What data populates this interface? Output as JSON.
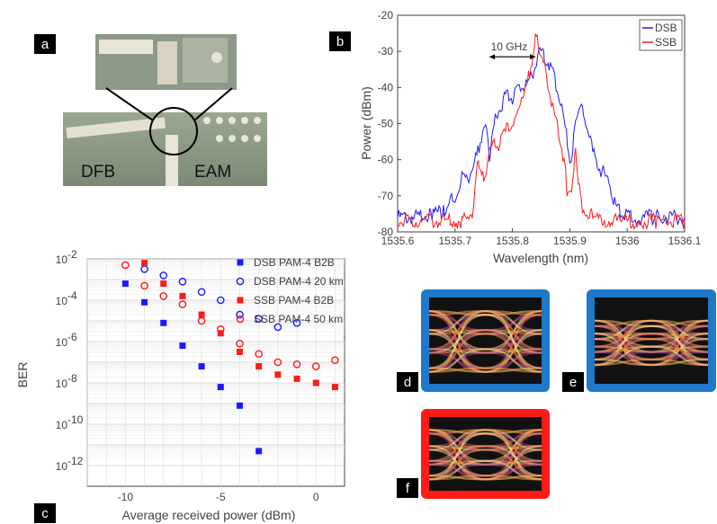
{
  "panels": {
    "a": "a",
    "b": "b",
    "c": "c",
    "d": "d",
    "e": "e",
    "f": "f"
  },
  "photo": {
    "left_label": "DFB",
    "right_label": "EAM"
  },
  "colors": {
    "dsb": "#1a1aff",
    "ssb": "#ff1a1a",
    "eye_frame_blue": "#1f78c8",
    "eye_frame_red": "#ff1a1a",
    "ber_blue": "#1a1aff",
    "ber_red": "#ff1a1a"
  },
  "chart_data": [
    {
      "type": "line",
      "xlabel": "Wavelength (nm)",
      "ylabel": "Power (dBm)",
      "xlim": [
        1535.6,
        1536.1
      ],
      "ylim": [
        -80,
        -20
      ],
      "xticks": [
        "1535.6",
        "1535.7",
        "1535.8",
        "1535.9",
        "1536",
        "1536.1"
      ],
      "yticks": [
        "-20",
        "-30",
        "-40",
        "-50",
        "-60",
        "-70",
        "-80"
      ],
      "annotation": "10 GHz",
      "annotation_arrow": {
        "x": [
          1535.76,
          1535.84
        ],
        "y": -31.5
      },
      "legend": {
        "position": "top-right",
        "entries": [
          "DSB",
          "SSB"
        ]
      },
      "series": [
        {
          "name": "DSB",
          "color": "#1a1aff",
          "x": [
            1535.6,
            1535.64,
            1535.66,
            1535.68,
            1535.69,
            1535.7,
            1535.71,
            1535.72,
            1535.73,
            1535.74,
            1535.75,
            1535.755,
            1535.76,
            1535.77,
            1535.78,
            1535.79,
            1535.8,
            1535.81,
            1535.82,
            1535.83,
            1535.84,
            1535.85,
            1535.86,
            1535.87,
            1535.88,
            1535.89,
            1535.9,
            1535.905,
            1535.91,
            1535.92,
            1535.93,
            1535.94,
            1535.95,
            1535.96,
            1535.97,
            1535.98,
            1535.99,
            1536.0,
            1536.02,
            1536.05,
            1536.1
          ],
          "y": [
            -76,
            -76,
            -75,
            -74,
            -71,
            -72,
            -65,
            -65,
            -63,
            -58,
            -51,
            -53,
            -60,
            -49,
            -45,
            -42,
            -43,
            -41,
            -40,
            -38,
            -34,
            -30,
            -32,
            -36,
            -41,
            -49,
            -60,
            -58,
            -48,
            -46,
            -51,
            -58,
            -62,
            -64,
            -67,
            -73,
            -75,
            -76,
            -76,
            -76,
            -76
          ]
        },
        {
          "name": "SSB",
          "color": "#ff1a1a",
          "x": [
            1535.6,
            1535.65,
            1535.7,
            1535.72,
            1535.73,
            1535.735,
            1535.74,
            1535.745,
            1535.75,
            1535.76,
            1535.77,
            1535.78,
            1535.8,
            1535.82,
            1535.83,
            1535.84,
            1535.845,
            1535.85,
            1535.86,
            1535.87,
            1535.88,
            1535.89,
            1535.895,
            1535.905,
            1535.91,
            1535.915,
            1535.92,
            1535.94,
            1535.96,
            1535.99,
            1536.02,
            1536.05,
            1536.1
          ],
          "y": [
            -77,
            -77,
            -77,
            -77,
            -76,
            -68,
            -58,
            -64,
            -66,
            -57,
            -56,
            -55,
            -49,
            -43,
            -36,
            -26,
            -28,
            -32,
            -37,
            -45,
            -52,
            -60,
            -68,
            -67,
            -58,
            -65,
            -73,
            -76,
            -77,
            -77,
            -77,
            -77,
            -77
          ]
        }
      ]
    },
    {
      "type": "scatter",
      "xlabel": "Average received power (dBm)",
      "ylabel": "BER",
      "xlim": [
        -12,
        1.5
      ],
      "ylim_log10": [
        -13,
        -2
      ],
      "yscale": "log",
      "xticks": [
        "-10",
        "-5",
        "0"
      ],
      "yticks": [
        "10",
        "10",
        "10",
        "10",
        "10",
        "10"
      ],
      "ytick_exponents": [
        "-2",
        "-4",
        "-6",
        "-8",
        "-10",
        "-12"
      ],
      "grid": true,
      "legend": {
        "position": "top-right",
        "entries": [
          "DSB PAM-4 B2B",
          "DSB PAM-4 20 km",
          "SSB PAM-4 B2B",
          "SSB PAM-4 50 km"
        ]
      },
      "series": [
        {
          "name": "DSB PAM-4 B2B",
          "marker": "filled-square",
          "color": "#1a1aff",
          "x": [
            -10,
            -9,
            -8,
            -7,
            -6,
            -5,
            -4,
            -3
          ],
          "log10_y": [
            -3.2,
            -4.1,
            -5.1,
            -6.2,
            -7.2,
            -8.2,
            -9.1,
            -11.3
          ]
        },
        {
          "name": "DSB PAM-4 20 km",
          "marker": "open-circle",
          "color": "#1a1aff",
          "x": [
            -9,
            -8,
            -7,
            -6,
            -5,
            -4,
            -3,
            -2,
            -1
          ],
          "log10_y": [
            -2.5,
            -2.8,
            -3.1,
            -3.6,
            -4.0,
            -4.7,
            -4.9,
            -5.3,
            -5.1
          ]
        },
        {
          "name": "SSB PAM-4 B2B",
          "marker": "filled-square",
          "color": "#ff1a1a",
          "x": [
            -9,
            -8,
            -7,
            -6,
            -5,
            -4,
            -3,
            -2,
            -1,
            0,
            1
          ],
          "log10_y": [
            -2.2,
            -3.2,
            -3.8,
            -4.7,
            -5.6,
            -6.5,
            -7.2,
            -7.6,
            -7.8,
            -8.0,
            -8.2
          ]
        },
        {
          "name": "SSB PAM-4 50 km",
          "marker": "open-circle",
          "color": "#ff1a1a",
          "x": [
            -10,
            -9,
            -8,
            -7,
            -6,
            -5,
            -4,
            -3,
            -2,
            -1,
            0,
            1
          ],
          "log10_y": [
            -2.3,
            -3.3,
            -3.8,
            -4.2,
            -5.0,
            -5.4,
            -6.1,
            -6.6,
            -7.0,
            -7.1,
            -7.2,
            -6.9
          ]
        }
      ]
    }
  ]
}
